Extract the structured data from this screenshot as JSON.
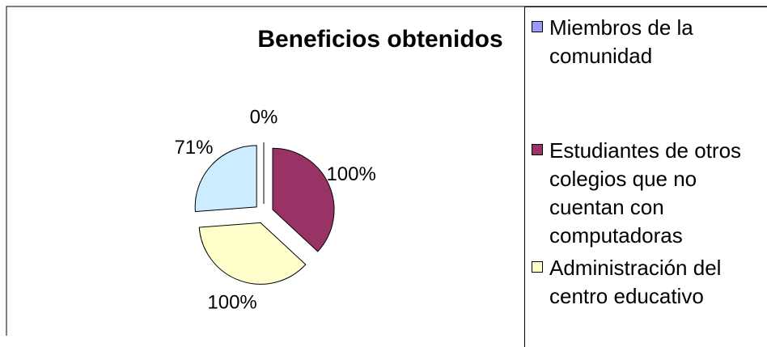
{
  "chart_data": {
    "type": "pie",
    "title": "Beneficios obtenidos",
    "categories": [
      "Miembros de la comunidad",
      "Estudiantes de otros colegios que no cuentan con computadoras",
      "Administración del centro educativo",
      null
    ],
    "values": [
      0,
      100,
      100,
      71
    ],
    "value_labels": [
      "0%",
      "100%",
      "100%",
      "71%"
    ],
    "colors": [
      "#9999ff",
      "#993366",
      "#ffffcc",
      "#ccecff"
    ]
  }
}
